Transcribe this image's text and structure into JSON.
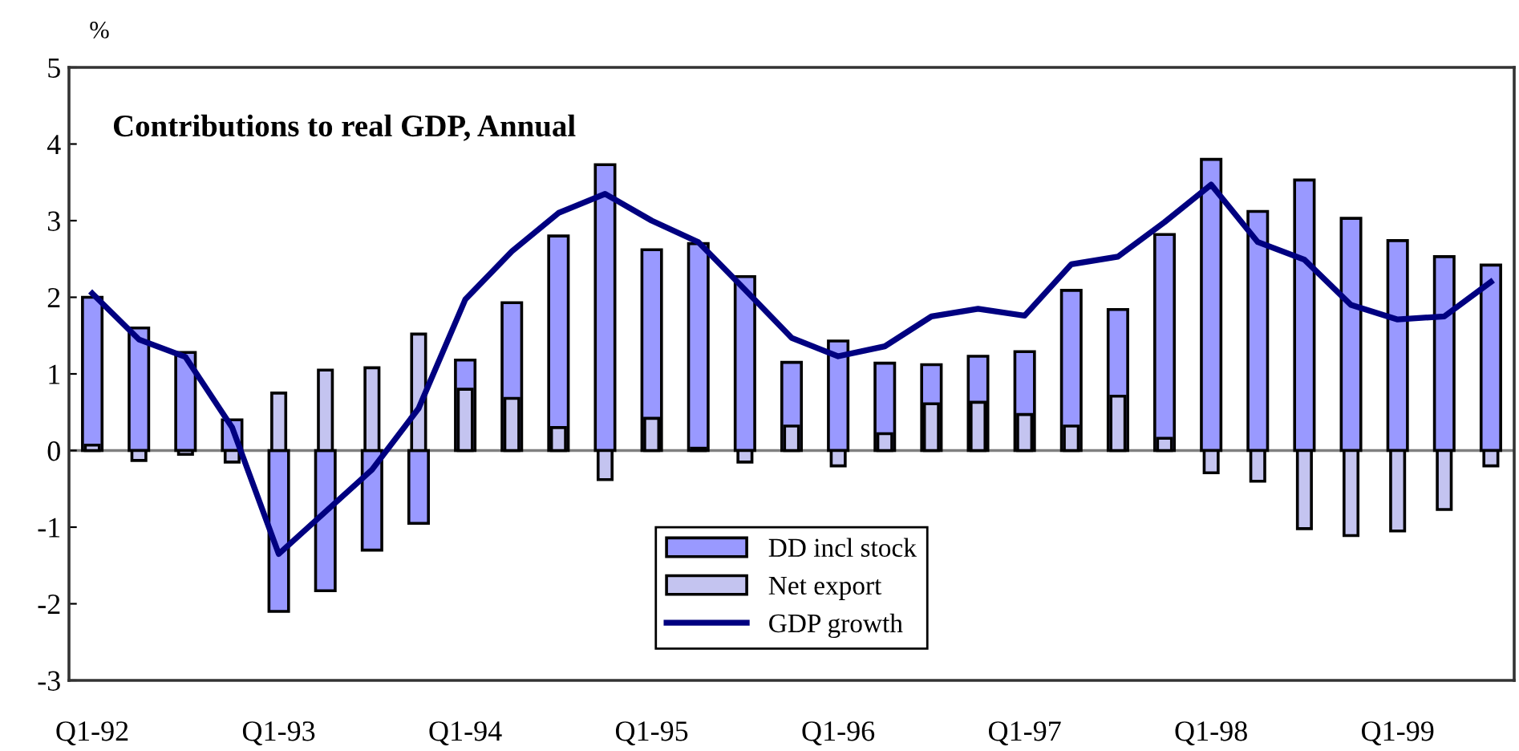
{
  "chart_data": {
    "type": "bar",
    "title": "Contributions to real GDP, Annual",
    "ylabel": "%",
    "categories": [
      "Q1-92",
      null,
      null,
      null,
      "Q1-93",
      null,
      null,
      null,
      "Q1-94",
      null,
      null,
      null,
      "Q1-95",
      null,
      null,
      null,
      "Q1-96",
      null,
      null,
      null,
      "Q1-97",
      null,
      null,
      null,
      "Q1-98",
      null,
      null,
      null,
      "Q1-99",
      null,
      null
    ],
    "series": [
      {
        "name": "DD incl stock",
        "color": "#9999ff",
        "values": [
          2.0,
          1.6,
          1.28,
          0.4,
          -2.1,
          -1.83,
          -1.3,
          -0.95,
          1.18,
          1.93,
          2.8,
          3.73,
          2.62,
          2.7,
          2.27,
          1.15,
          1.43,
          1.14,
          1.12,
          1.23,
          1.29,
          2.09,
          1.84,
          2.82,
          3.8,
          3.12,
          3.53,
          3.03,
          2.74,
          2.53,
          2.42
        ]
      },
      {
        "name": "Net export",
        "color": "#c4c4f0",
        "values": [
          0.07,
          -0.13,
          -0.05,
          -0.15,
          0.75,
          1.05,
          1.08,
          1.52,
          0.8,
          0.68,
          0.3,
          -0.38,
          0.42,
          0.03,
          -0.15,
          0.32,
          -0.2,
          0.22,
          0.61,
          0.63,
          0.47,
          0.32,
          0.71,
          0.16,
          -0.29,
          -0.4,
          -1.02,
          -1.11,
          -1.05,
          -0.77,
          -0.2
        ]
      },
      {
        "name": "GDP growth",
        "type": "line",
        "color": "#000080",
        "values": [
          2.05,
          1.45,
          1.22,
          0.3,
          -1.35,
          -0.8,
          -0.25,
          0.55,
          1.97,
          2.6,
          3.1,
          3.35,
          3.0,
          2.72,
          2.1,
          1.47,
          1.23,
          1.36,
          1.75,
          1.85,
          1.76,
          2.43,
          2.53,
          2.98,
          3.47,
          2.72,
          2.49,
          1.9,
          1.71,
          1.75,
          2.2
        ]
      }
    ],
    "ylim": [
      -3,
      5
    ],
    "yticks": [
      -3,
      -2,
      -1,
      0,
      1,
      2,
      3,
      4,
      5
    ],
    "ref_lines": [
      {
        "axis": "y",
        "value": 0,
        "color": "#808080"
      }
    ],
    "grid": false,
    "legend": "bottom",
    "marker": "none",
    "line_style": "solid"
  }
}
